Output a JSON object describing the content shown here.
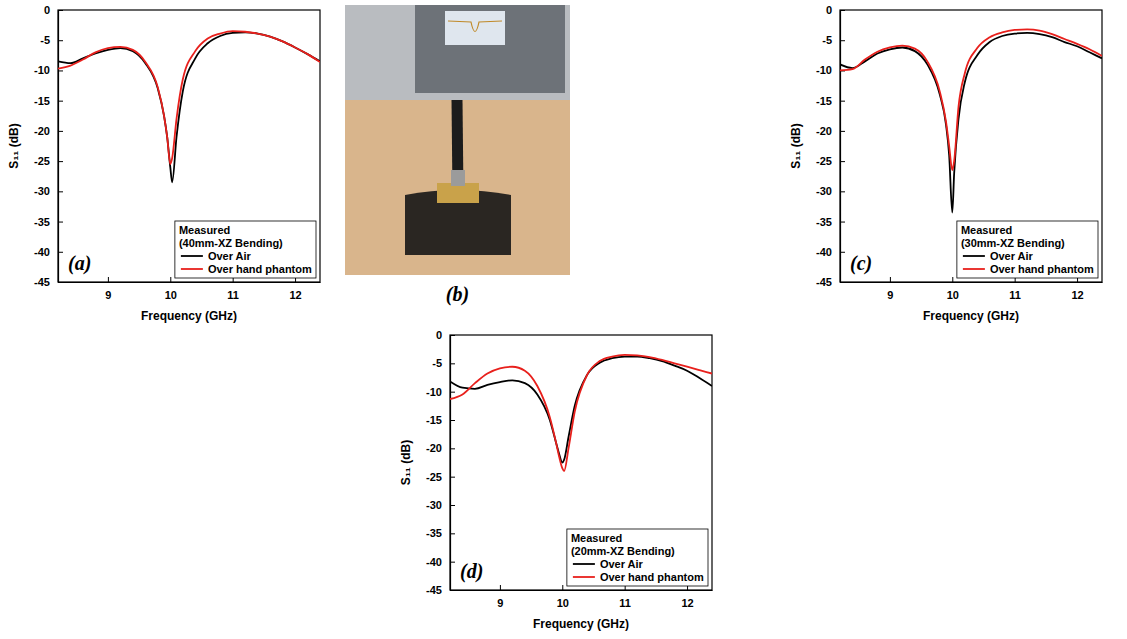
{
  "chart_data": [
    {
      "type": "line",
      "annotation": "(a)",
      "legend_title": [
        "Measured",
        "(40mm-XZ Bending)"
      ],
      "x_label": "Frequency (GHz)",
      "y_label": "S₁₁ (dB)",
      "xlim": [
        8.2,
        12.4
      ],
      "ylim": [
        -45,
        0
      ],
      "xticks": [
        9,
        10,
        11,
        12
      ],
      "yticks": [
        0,
        -5,
        -10,
        -15,
        -20,
        -25,
        -30,
        -35,
        -40,
        -45
      ],
      "legend": "lower right",
      "x": [
        8.2,
        8.4,
        8.6,
        8.8,
        9.0,
        9.2,
        9.4,
        9.6,
        9.8,
        9.9,
        9.95,
        10.0,
        10.03,
        10.1,
        10.2,
        10.4,
        10.6,
        10.8,
        11.0,
        11.2,
        11.4,
        11.6,
        11.8,
        12.0,
        12.2,
        12.4
      ],
      "series": [
        {
          "name": "Over Air",
          "color": "#000000",
          "values": [
            -8.5,
            -8.8,
            -8.0,
            -7.2,
            -6.6,
            -6.3,
            -6.8,
            -8.8,
            -13,
            -17.5,
            -21,
            -26,
            -28.5,
            -21,
            -13.5,
            -8,
            -5.5,
            -4.3,
            -3.8,
            -3.7,
            -3.9,
            -4.4,
            -5.2,
            -6.2,
            -7.3,
            -8.5
          ]
        },
        {
          "name": "Over hand phantom",
          "color": "#e8201c",
          "values": [
            -9.7,
            -9.2,
            -8.2,
            -7.0,
            -6.3,
            -6.1,
            -6.6,
            -8.6,
            -12.8,
            -17.5,
            -21,
            -25.5,
            -24.5,
            -18,
            -11.5,
            -6.8,
            -4.7,
            -3.9,
            -3.5,
            -3.6,
            -3.9,
            -4.4,
            -5.2,
            -6.2,
            -7.3,
            -8.6
          ]
        }
      ]
    },
    {
      "type": "line",
      "annotation": "(c)",
      "legend_title": [
        "Measured",
        "(30mm-XZ Bending)"
      ],
      "x_label": "Frequency (GHz)",
      "y_label": "S₁₁ (dB)",
      "xlim": [
        8.2,
        12.4
      ],
      "ylim": [
        -45,
        0
      ],
      "xticks": [
        9,
        10,
        11,
        12
      ],
      "yticks": [
        0,
        -5,
        -10,
        -15,
        -20,
        -25,
        -30,
        -35,
        -40,
        -45
      ],
      "legend": "lower right",
      "x": [
        8.2,
        8.4,
        8.6,
        8.8,
        9.0,
        9.2,
        9.4,
        9.6,
        9.8,
        9.9,
        9.95,
        10.0,
        10.03,
        10.1,
        10.2,
        10.4,
        10.6,
        10.8,
        11.0,
        11.2,
        11.4,
        11.6,
        11.8,
        12.0,
        12.2,
        12.4
      ],
      "series": [
        {
          "name": "Over Air",
          "color": "#000000",
          "values": [
            -9.0,
            -9.6,
            -8.5,
            -7.2,
            -6.5,
            -6.2,
            -6.8,
            -9,
            -14,
            -19,
            -24,
            -33.5,
            -27,
            -18,
            -12,
            -7.5,
            -5.3,
            -4.3,
            -3.9,
            -3.8,
            -4.0,
            -4.5,
            -5.3,
            -6.0,
            -7.0,
            -8.0
          ]
        },
        {
          "name": "Over hand phantom",
          "color": "#e8201c",
          "values": [
            -10,
            -9.8,
            -8.2,
            -6.9,
            -6.2,
            -5.9,
            -6.4,
            -8.5,
            -13.5,
            -18.5,
            -22.5,
            -26.5,
            -25,
            -16,
            -10.5,
            -6.3,
            -4.5,
            -3.7,
            -3.3,
            -3.2,
            -3.4,
            -4.0,
            -4.8,
            -5.6,
            -6.5,
            -7.6
          ]
        }
      ]
    },
    {
      "type": "line",
      "annotation": "(d)",
      "legend_title": [
        "Measured",
        "(20mm-XZ Bending)"
      ],
      "x_label": "Frequency (GHz)",
      "y_label": "S₁₁ (dB)",
      "xlim": [
        8.2,
        12.4
      ],
      "ylim": [
        -45,
        0
      ],
      "xticks": [
        9,
        10,
        11,
        12
      ],
      "yticks": [
        0,
        -5,
        -10,
        -15,
        -20,
        -25,
        -30,
        -35,
        -40,
        -45
      ],
      "legend": "lower right",
      "x": [
        8.2,
        8.4,
        8.6,
        8.8,
        9.0,
        9.2,
        9.4,
        9.6,
        9.8,
        9.9,
        9.95,
        10.0,
        10.03,
        10.1,
        10.2,
        10.4,
        10.6,
        10.8,
        11.0,
        11.2,
        11.4,
        11.6,
        11.8,
        12.0,
        12.2,
        12.4
      ],
      "series": [
        {
          "name": "Over Air",
          "color": "#000000",
          "values": [
            -8.2,
            -9.3,
            -9.5,
            -8.8,
            -8.3,
            -8.0,
            -8.5,
            -10.5,
            -15,
            -19,
            -21,
            -22.5,
            -22,
            -18,
            -12.5,
            -7,
            -4.9,
            -4.1,
            -3.8,
            -3.8,
            -4.1,
            -4.6,
            -5.4,
            -6.3,
            -7.6,
            -9.0
          ]
        },
        {
          "name": "Over hand phantom",
          "color": "#e8201c",
          "values": [
            -11.3,
            -10.5,
            -8.5,
            -6.8,
            -5.9,
            -5.6,
            -6.3,
            -9.0,
            -14.5,
            -19,
            -21.5,
            -23.5,
            -24,
            -20,
            -13.5,
            -7.0,
            -4.6,
            -3.8,
            -3.5,
            -3.6,
            -3.9,
            -4.4,
            -5.0,
            -5.6,
            -6.2,
            -6.8
          ]
        }
      ]
    }
  ],
  "photo": {
    "label": "(b)"
  }
}
